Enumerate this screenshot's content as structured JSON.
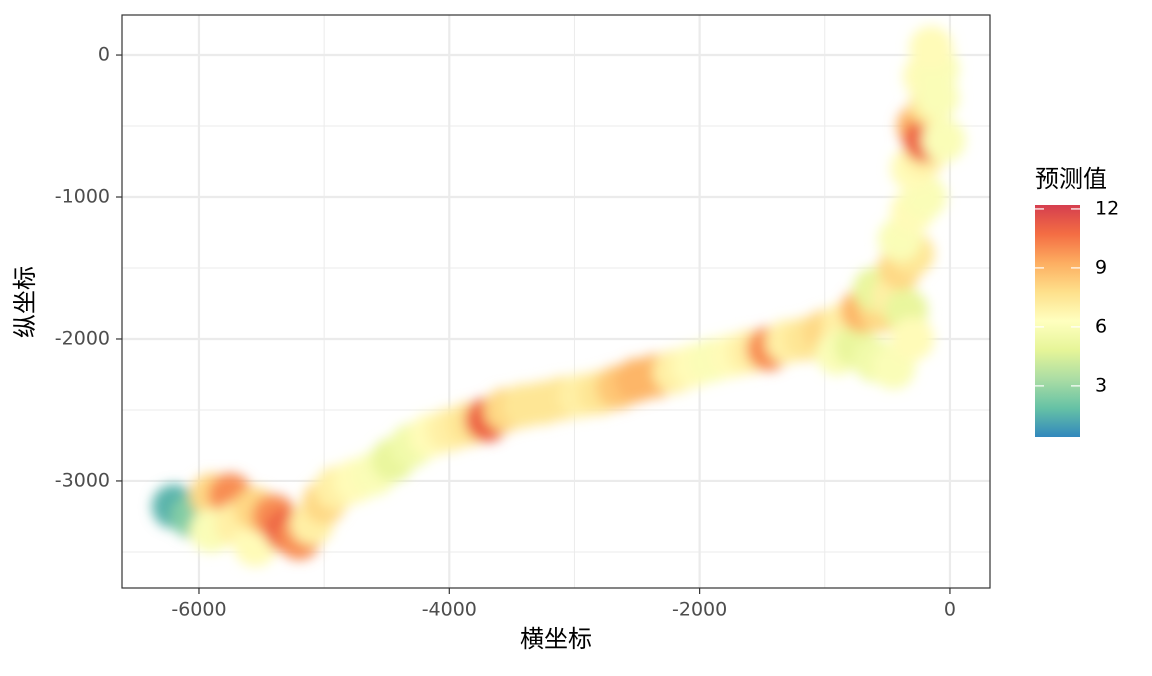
{
  "chart_data": {
    "type": "raster",
    "x_label": "横坐标",
    "y_label": "纵坐标",
    "legend_title": "预测值",
    "xlim": [
      -6615,
      320
    ],
    "ylim": [
      -3754,
      282
    ],
    "xticks": [
      -6000,
      -4000,
      -2000,
      0
    ],
    "yticks": [
      0,
      -1000,
      -2000,
      -3000
    ],
    "zlim": [
      0.4,
      12.2
    ],
    "zticks": [
      3,
      6,
      9,
      12
    ],
    "colors": [
      "#3288bd",
      "#66c2a5",
      "#abdda4",
      "#e6f598",
      "#ffffbf",
      "#fee08b",
      "#fdae61",
      "#f46d43",
      "#d53e4f"
    ],
    "grid": true,
    "x": [
      -6200,
      -6050,
      -5900,
      -5750,
      -5900,
      -5700,
      -5550,
      -5550,
      -5400,
      -5300,
      -5200,
      -5100,
      -5000,
      -4900,
      -4750,
      -4600,
      -4450,
      -4300,
      -4150,
      -4000,
      -3850,
      -3700,
      -3550,
      -3400,
      -3250,
      -3100,
      -2950,
      -2800,
      -2650,
      -2500,
      -2350,
      -2200,
      -2050,
      -1900,
      -1750,
      -1600,
      -1450,
      -1300,
      -1150,
      -1000,
      -850,
      -900,
      -750,
      -600,
      -450,
      -700,
      -550,
      -600,
      -450,
      -350,
      -300,
      -400,
      -300,
      -400,
      -300,
      -200,
      -300,
      -200,
      -250,
      -200,
      -150,
      -200,
      -100,
      -150,
      -100,
      -50
    ],
    "y": [
      -3180,
      -3250,
      -3100,
      -3100,
      -3350,
      -3300,
      -3450,
      -3200,
      -3250,
      -3350,
      -3400,
      -3300,
      -3150,
      -3050,
      -3000,
      -2950,
      -2850,
      -2750,
      -2680,
      -2640,
      -2600,
      -2570,
      -2500,
      -2470,
      -2450,
      -2420,
      -2400,
      -2380,
      -2340,
      -2290,
      -2260,
      -2230,
      -2190,
      -2150,
      -2120,
      -2090,
      -2070,
      -2020,
      -2000,
      -1950,
      -1900,
      -2100,
      -2050,
      -2150,
      -2200,
      -1800,
      -1800,
      -1650,
      -1700,
      -1800,
      -2000,
      -1500,
      -1400,
      -1300,
      -1100,
      -1000,
      -800,
      -700,
      -500,
      -600,
      -350,
      -150,
      -100,
      50,
      -300,
      -600
    ],
    "values": [
      1.5,
      2.5,
      8,
      10,
      6,
      7,
      6.5,
      8,
      10,
      11,
      10,
      7,
      8,
      7,
      6.5,
      6,
      5,
      5.5,
      6.5,
      7,
      7.5,
      11,
      8,
      7.5,
      7.5,
      7.5,
      7,
      7.5,
      8.5,
      9,
      9,
      7,
      6.5,
      6,
      6.5,
      7,
      10,
      7,
      7.5,
      8,
      7,
      6,
      5,
      5.5,
      6,
      9,
      8,
      5,
      7,
      5,
      6.5,
      8,
      7.5,
      6,
      6.5,
      6,
      6.5,
      7,
      9,
      11,
      7.5,
      6.5,
      6,
      6.5,
      6,
      6
    ]
  }
}
